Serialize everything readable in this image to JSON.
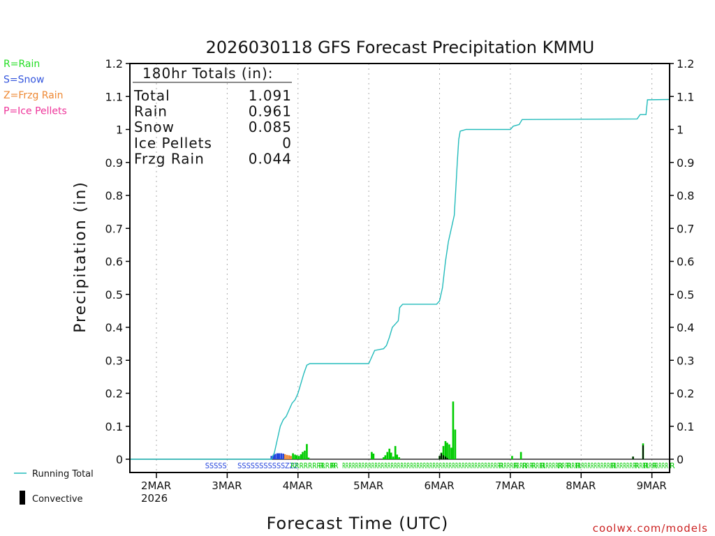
{
  "chart_data": {
    "type": "bar+line",
    "title": "2026030118 GFS Forecast Precipitation KMMU",
    "xlabel": "Forecast Time (UTC)",
    "ylabel": "Precipitation (in)",
    "ylim": [
      0,
      1.2
    ],
    "yticks": [
      0,
      0.1,
      0.2,
      0.3,
      0.4,
      0.5,
      0.6,
      0.7,
      0.8,
      0.9,
      1,
      1.1,
      1.2
    ],
    "xlim_hours": [
      -3,
      180
    ],
    "xticks": [
      {
        "hour": 6,
        "label": "2MAR",
        "sub": "2026"
      },
      {
        "hour": 30,
        "label": "3MAR",
        "sub": ""
      },
      {
        "hour": 54,
        "label": "4MAR",
        "sub": ""
      },
      {
        "hour": 78,
        "label": "5MAR",
        "sub": ""
      },
      {
        "hour": 102,
        "label": "6MAR",
        "sub": ""
      },
      {
        "hour": 126,
        "label": "7MAR",
        "sub": ""
      },
      {
        "hour": 150,
        "label": "8MAR",
        "sub": ""
      },
      {
        "hour": 174,
        "label": "9MAR",
        "sub": ""
      }
    ],
    "legend_types": [
      {
        "label": "R=Rain",
        "color": "#22dd22"
      },
      {
        "label": "S=Snow",
        "color": "#3355dd"
      },
      {
        "label": "Z=Frzg Rain",
        "color": "#ee8833"
      },
      {
        "label": "P=Ice Pellets",
        "color": "#ee3399"
      }
    ],
    "legend_lines": {
      "running_total": "Running Total",
      "convective": "Convective"
    },
    "totals": {
      "header": "180hr Totals (in):",
      "rows": [
        {
          "label": "Total",
          "value": "1.091"
        },
        {
          "label": "Rain",
          "value": "0.961"
        },
        {
          "label": "Snow",
          "value": "0.085"
        },
        {
          "label": "Ice Pellets",
          "value": "0"
        },
        {
          "label": "Frzg Rain",
          "value": "0.044"
        }
      ]
    },
    "colors": {
      "rain": "#00cc00",
      "snow": "#2244dd",
      "frzg": "#ee8833",
      "total_line": "#22bbbb",
      "convective": "#000000"
    },
    "running_total": [
      [
        -3,
        0
      ],
      [
        36,
        0
      ],
      [
        45,
        0
      ],
      [
        46,
        0.02
      ],
      [
        47,
        0.06
      ],
      [
        48,
        0.1
      ],
      [
        49,
        0.12
      ],
      [
        50,
        0.13
      ],
      [
        51,
        0.15
      ],
      [
        52,
        0.17
      ],
      [
        53,
        0.18
      ],
      [
        54,
        0.2
      ],
      [
        55,
        0.23
      ],
      [
        56,
        0.26
      ],
      [
        57,
        0.285
      ],
      [
        58,
        0.29
      ],
      [
        78,
        0.29
      ],
      [
        79,
        0.31
      ],
      [
        80,
        0.33
      ],
      [
        83,
        0.335
      ],
      [
        84,
        0.345
      ],
      [
        85,
        0.37
      ],
      [
        86,
        0.4
      ],
      [
        87,
        0.41
      ],
      [
        88,
        0.42
      ],
      [
        88.5,
        0.46
      ],
      [
        89.5,
        0.47
      ],
      [
        101,
        0.47
      ],
      [
        102,
        0.48
      ],
      [
        103,
        0.52
      ],
      [
        104,
        0.6
      ],
      [
        105,
        0.66
      ],
      [
        106,
        0.7
      ],
      [
        107,
        0.74
      ],
      [
        107.5,
        0.82
      ],
      [
        108,
        0.9
      ],
      [
        108.5,
        0.97
      ],
      [
        109,
        0.995
      ],
      [
        111,
        1.0
      ],
      [
        113,
        1.0
      ],
      [
        126,
        1.0
      ],
      [
        127,
        1.01
      ],
      [
        129,
        1.015
      ],
      [
        130,
        1.03
      ],
      [
        169,
        1.032
      ],
      [
        170,
        1.045
      ],
      [
        172,
        1.045
      ],
      [
        172.5,
        1.09
      ],
      [
        180,
        1.091
      ]
    ],
    "bars": [
      {
        "h": 45.0,
        "snow": 0.01
      },
      {
        "h": 45.7,
        "snow": 0.013
      },
      {
        "h": 46.3,
        "snow": 0.016
      },
      {
        "h": 47.0,
        "snow": 0.018
      },
      {
        "h": 47.6,
        "snow": 0.018
      },
      {
        "h": 48.3,
        "snow": 0.018
      },
      {
        "h": 49.0,
        "snow": 0.017
      },
      {
        "h": 49.6,
        "frzg": 0.015
      },
      {
        "h": 50.3,
        "frzg": 0.013
      },
      {
        "h": 51.0,
        "frzg": 0.012
      },
      {
        "h": 51.6,
        "frzg": 0.01
      },
      {
        "h": 52.3,
        "rain": 0.018
      },
      {
        "h": 53.0,
        "rain": 0.014
      },
      {
        "h": 53.6,
        "rain": 0.012
      },
      {
        "h": 54.3,
        "rain": 0.01
      },
      {
        "h": 55.0,
        "rain": 0.015
      },
      {
        "h": 55.6,
        "rain": 0.022
      },
      {
        "h": 56.3,
        "rain": 0.026
      },
      {
        "h": 57.0,
        "rain": 0.046
      },
      {
        "h": 57.6,
        "rain": 0.005
      },
      {
        "h": 79.0,
        "rain": 0.022
      },
      {
        "h": 79.6,
        "rain": 0.017
      },
      {
        "h": 83.0,
        "rain": 0.006
      },
      {
        "h": 83.6,
        "rain": 0.012
      },
      {
        "h": 84.3,
        "rain": 0.022
      },
      {
        "h": 85.0,
        "rain": 0.032
      },
      {
        "h": 85.6,
        "rain": 0.02
      },
      {
        "h": 86.3,
        "rain": 0.008
      },
      {
        "h": 87.0,
        "rain": 0.04
      },
      {
        "h": 87.6,
        "rain": 0.014
      },
      {
        "h": 88.3,
        "rain": 0.006
      },
      {
        "h": 102.0,
        "rain": 0.01,
        "conv": 0.01
      },
      {
        "h": 102.6,
        "rain": 0.02,
        "conv": 0.018
      },
      {
        "h": 103.3,
        "rain": 0.04,
        "conv": 0.012
      },
      {
        "h": 104.0,
        "rain": 0.055,
        "conv": 0.008
      },
      {
        "h": 104.6,
        "rain": 0.05,
        "conv": 0.004
      },
      {
        "h": 105.3,
        "rain": 0.045
      },
      {
        "h": 106.0,
        "rain": 0.035
      },
      {
        "h": 106.6,
        "rain": 0.175
      },
      {
        "h": 107.3,
        "rain": 0.09
      },
      {
        "h": 126.6,
        "rain": 0.01
      },
      {
        "h": 129.6,
        "rain": 0.022
      },
      {
        "h": 167.6,
        "rain": 0.008,
        "conv": 0.008
      },
      {
        "h": 171.0,
        "rain": 0.048,
        "conv": 0.042
      }
    ],
    "type_labels": [
      {
        "h": 22.5,
        "t": "SSSSS"
      },
      {
        "h": 33.5,
        "t": "SSSSSSSSSS"
      },
      {
        "h": 48.2,
        "t": "SZZZ"
      },
      {
        "h": 51.5,
        "t": "RRRRRRRRRRR"
      },
      {
        "h": 61,
        "t": "R"
      },
      {
        "h": 65,
        "t": "R"
      },
      {
        "h": 69,
        "t": "RRRRRRRRRRRRRRRRRRRRRRRRRRRRRRRRRRRRRRRRRRRRRRRRRRRRRRRRRRRRRRRRRRRRRRRRRRRRRRRRRRRRRRRRRRRRRRRRRRRRR"
      },
      {
        "h": 122,
        "t": "R"
      },
      {
        "h": 127,
        "t": "R"
      },
      {
        "h": 130,
        "t": "R"
      },
      {
        "h": 133,
        "t": "R"
      },
      {
        "h": 136,
        "t": "R"
      },
      {
        "h": 142,
        "t": "R"
      },
      {
        "h": 145,
        "t": "R"
      },
      {
        "h": 148,
        "t": "R"
      },
      {
        "h": 160,
        "t": "R"
      },
      {
        "h": 168,
        "t": "R"
      },
      {
        "h": 171,
        "t": "R"
      },
      {
        "h": 174,
        "t": "R"
      },
      {
        "h": 180,
        "t": "R"
      }
    ]
  },
  "credit": "coolwx.com/models"
}
